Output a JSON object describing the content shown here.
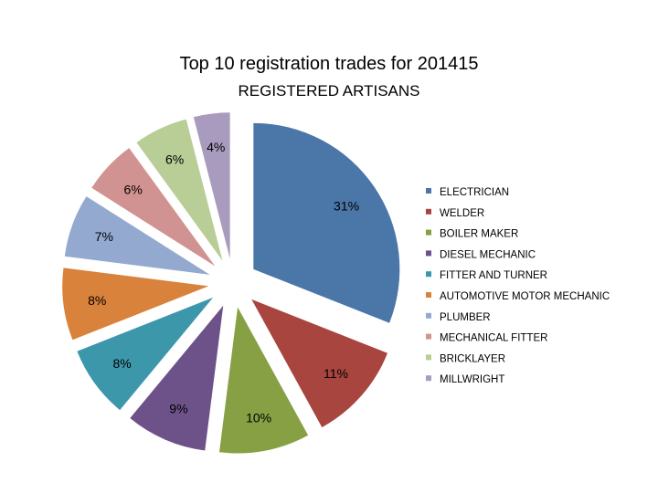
{
  "chart_data": {
    "type": "pie",
    "title": "Top 10 registration trades for 201415",
    "subtitle": "REGISTERED ARTISANS",
    "legend_position": "right",
    "slices": [
      {
        "name": "ELECTRICIAN",
        "value": 31,
        "label": "31%",
        "color": "#4a76a8"
      },
      {
        "name": "WELDER",
        "value": 11,
        "label": "11%",
        "color": "#a8453f"
      },
      {
        "name": "BOILER MAKER",
        "value": 10,
        "label": "10%",
        "color": "#86a043"
      },
      {
        "name": "DIESEL MECHANIC",
        "value": 9,
        "label": "9%",
        "color": "#6d5289"
      },
      {
        "name": "FITTER AND TURNER",
        "value": 8,
        "label": "8%",
        "color": "#3c97ab"
      },
      {
        "name": "AUTOMOTIVE MOTOR MECHANIC",
        "value": 8,
        "label": "8%",
        "color": "#d9823b"
      },
      {
        "name": "PLUMBER",
        "value": 7,
        "label": "7%",
        "color": "#93a9cf"
      },
      {
        "name": "MECHANICAL FITTER",
        "value": 6,
        "label": "6%",
        "color": "#d19391"
      },
      {
        "name": "BRICKLAYER",
        "value": 6,
        "label": "6%",
        "color": "#b9cd96"
      },
      {
        "name": "MILLWRIGHT",
        "value": 4,
        "label": "4%",
        "color": "#a99bbd"
      }
    ]
  }
}
